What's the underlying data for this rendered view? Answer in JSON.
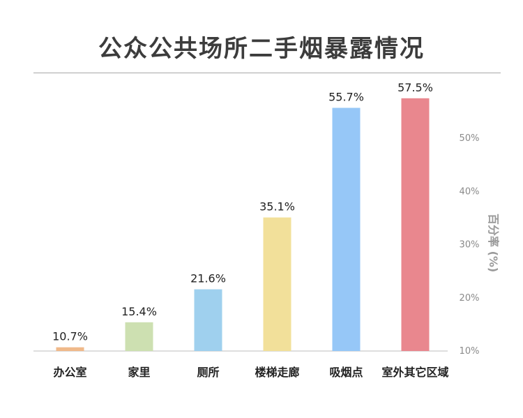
{
  "header": {
    "title": "公众公共场所二手烟暴露情况"
  },
  "chart_data": {
    "type": "bar",
    "title": "公众公共场所二手烟暴露情况",
    "categories": [
      "办公室",
      "家里",
      "厕所",
      "楼梯走廊",
      "吸烟点",
      "室外其它区域"
    ],
    "values": [
      10.7,
      15.4,
      21.6,
      35.1,
      55.7,
      57.5
    ],
    "value_labels": [
      "10.7%",
      "15.4%",
      "21.6%",
      "35.1%",
      "55.7%",
      "57.5%"
    ],
    "colors": [
      "#f0b98a",
      "#cde0b1",
      "#9fd0ee",
      "#f2e09a",
      "#96c7f7",
      "#e9878e"
    ],
    "y_ticks": [
      "10%",
      "20%",
      "30%",
      "40%",
      "50%"
    ],
    "ylabel": "百分率 (%)",
    "y_axis_position": "right",
    "grid": false
  }
}
